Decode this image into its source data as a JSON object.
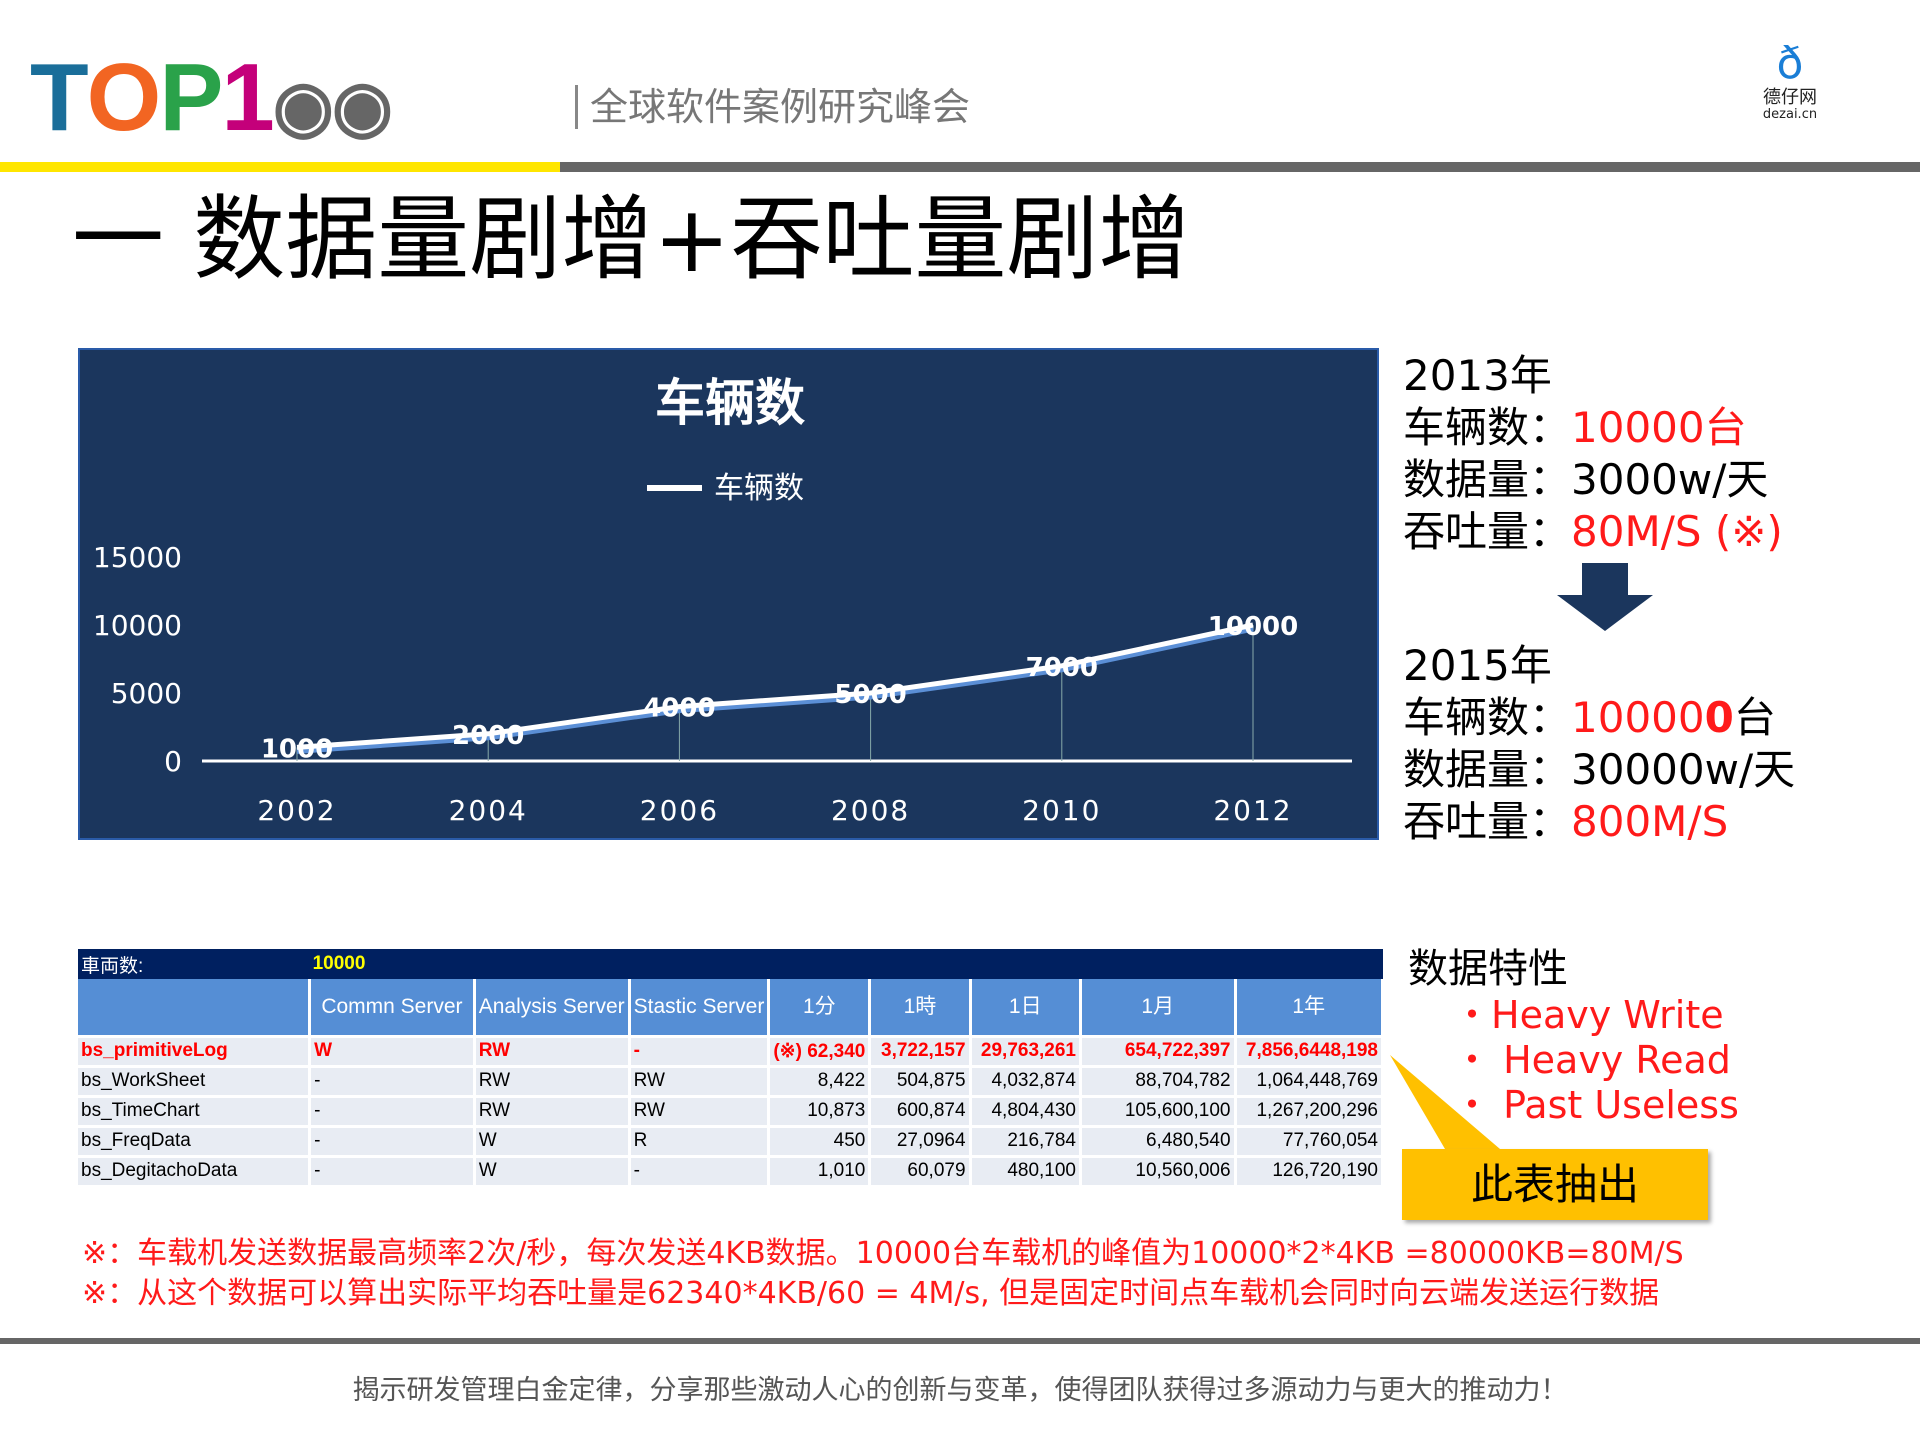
{
  "header": {
    "logo_text": "TOP1",
    "subtitle": "全球软件案例研究峰会",
    "partner_logo_cn": "德仔网",
    "partner_logo_en": "dezai.cn"
  },
  "title": "一  数据量剧增+吞吐量剧增",
  "chart_data": {
    "type": "line",
    "title": "车辆数",
    "legend": [
      "车辆数"
    ],
    "legend_placement": "top",
    "categories": [
      "2002",
      "2004",
      "2006",
      "2008",
      "2010",
      "2012"
    ],
    "values": [
      1000,
      2000,
      4000,
      5000,
      7000,
      10000
    ],
    "data_labels": [
      "1000",
      "2000",
      "4000",
      "5000",
      "7000",
      "10000"
    ],
    "yticks": [
      "15000",
      "10000",
      "5000",
      "0"
    ],
    "ylim": [
      0,
      15000
    ],
    "grid": false,
    "colors": {
      "background": "#1b365d",
      "line": "#ffffff"
    }
  },
  "stats_2013": {
    "year": "2013年",
    "vehicles_label": "车辆数：",
    "vehicles": "10000台",
    "data_label": "数据量：",
    "data": "3000w/天",
    "throughput_label": "吞吐量：",
    "throughput": "80M/S (※)"
  },
  "stats_2015": {
    "year": "2015年",
    "vehicles_label": "车辆数：",
    "vehicles_a": "10000",
    "vehicles_b": "0",
    "vehicles_c": "台",
    "data_label": "数据量：",
    "data": "30000w/天",
    "throughput_label": "吞吐量：",
    "throughput": "800M/S"
  },
  "table": {
    "top_label": "車両数:",
    "top_value": "10000",
    "headers": [
      "",
      "Commn Server",
      "Analysis Server",
      "Stastic Server",
      "1分",
      "1時",
      "1日",
      "1月",
      "1年"
    ],
    "rows": [
      [
        "bs_primitiveLog",
        "W",
        "RW",
        "-",
        "(※) 62,340",
        "3,722,157",
        "29,763,261",
        "654,722,397",
        "7,856,6448,198"
      ],
      [
        "bs_WorkSheet",
        "-",
        "RW",
        "RW",
        "8,422",
        "504,875",
        "4,032,874",
        "88,704,782",
        "1,064,448,769"
      ],
      [
        "bs_TimeChart",
        "-",
        "RW",
        "RW",
        "10,873",
        "600,874",
        "4,804,430",
        "105,600,100",
        "1,267,200,296"
      ],
      [
        "bs_FreqData",
        "-",
        "W",
        "R",
        "450",
        "27,0964",
        "216,784",
        "6,480,540",
        "77,760,054"
      ],
      [
        "bs_DegitachoData",
        "-",
        "W",
        "-",
        "1,010",
        "60,079",
        "480,100",
        "10,560,006",
        "126,720,190"
      ]
    ]
  },
  "features": {
    "title": "数据特性",
    "items": [
      "・Heavy Write",
      "・ Heavy Read",
      "・ Past Useless"
    ],
    "callout": "此表抽出"
  },
  "notes": [
    "※：车载机发送数据最高频率2次/秒，每次发送4KB数据。10000台车载机的峰值为10000*2*4KB =80000KB=80M/S",
    "※：从这个数据可以算出实际平均吞吐量是62340*4KB/60 = 4M/s, 但是固定时间点车载机会同时向云端发送运行数据"
  ],
  "footer": "揭示研发管理白金定律，分享那些激动人心的创新与变革，使得团队获得过多源动力与更大的推动力！"
}
